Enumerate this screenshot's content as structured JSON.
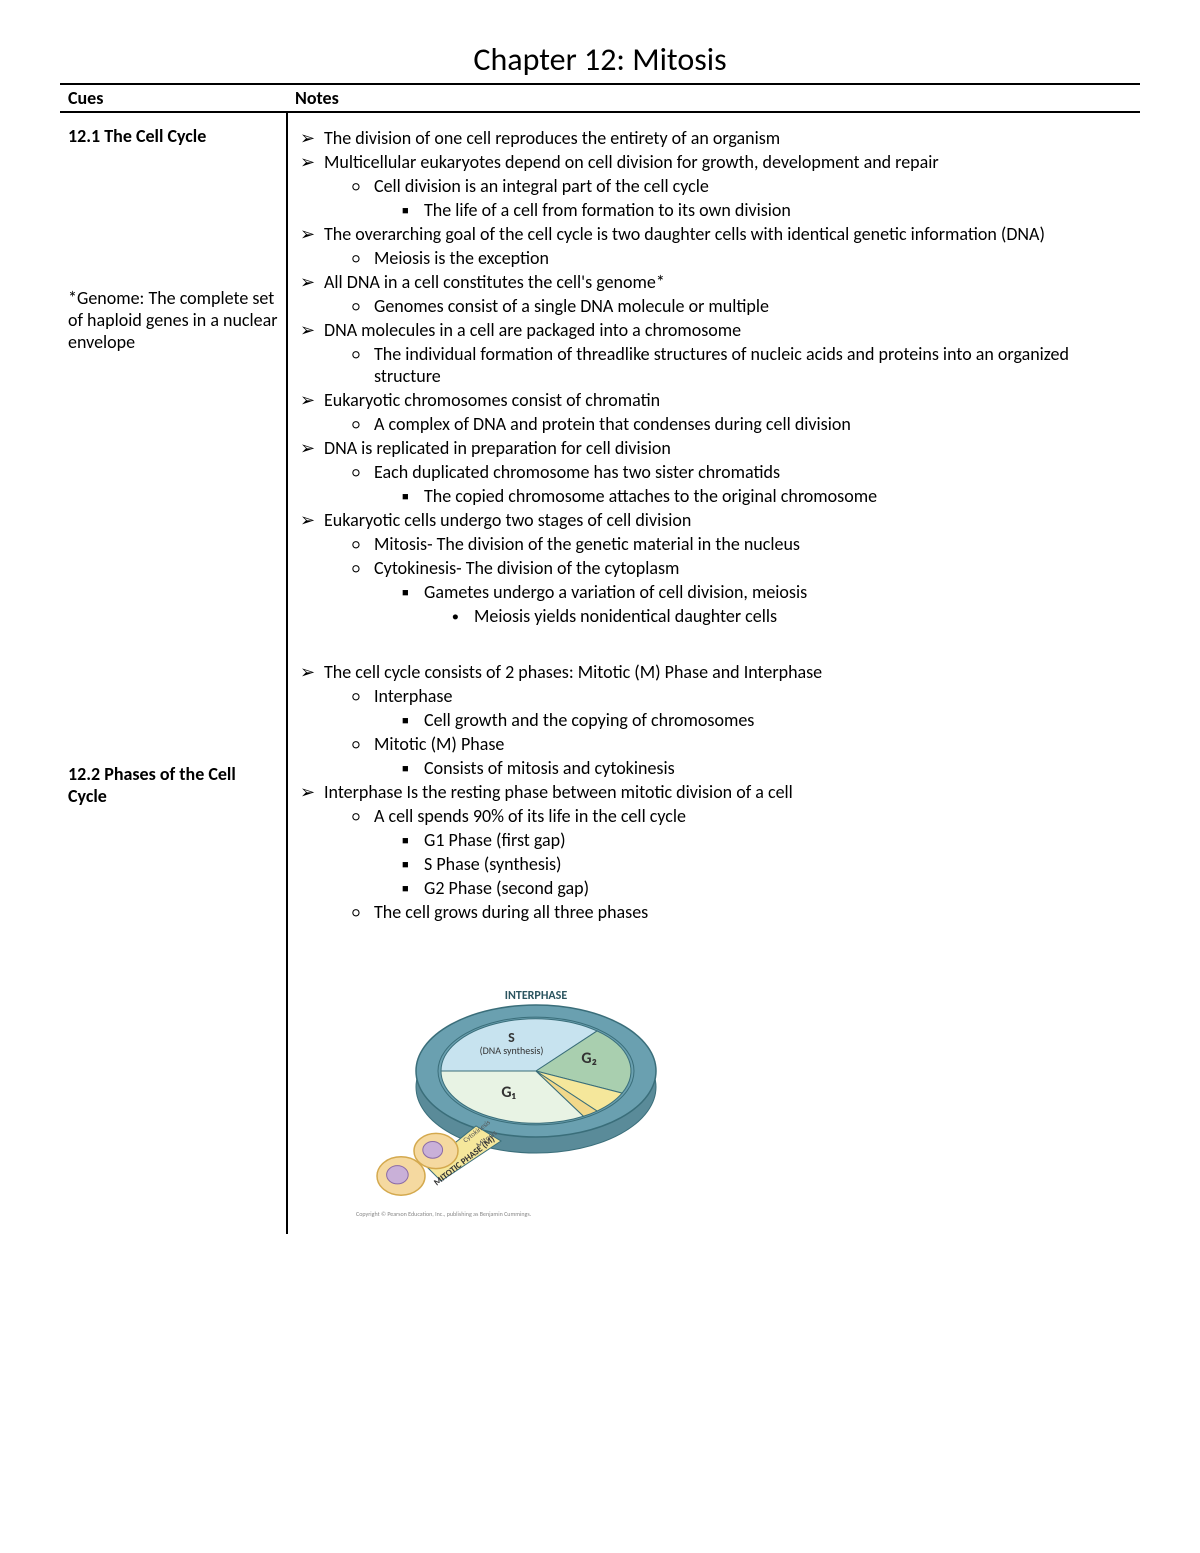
{
  "title": "Chapter 12: Mitosis",
  "headers": {
    "cues": "Cues",
    "notes": "Notes"
  },
  "cues": {
    "s1_title": "12.1 The Cell Cycle",
    "s1_def": "*Genome: The complete set of haploid genes in a nuclear envelope",
    "s2_title": "12.2 Phases of the Cell Cycle"
  },
  "notes": {
    "s1": {
      "b1": "The division of one cell reproduces the entirety of an organism",
      "b2": "Multicellular eukaryotes depend on cell division for growth, development and repair",
      "b2a": "Cell division is an integral part of the cell cycle",
      "b2a1": "The life of a cell from formation to its own division",
      "b3": "The overarching goal of the cell cycle is two daughter cells with identical genetic information (DNA)",
      "b3a": "Meiosis is the exception",
      "b4": "All DNA in a cell constitutes the cell's genome*",
      "b4a": "Genomes consist of a single DNA molecule or multiple",
      "b5": "DNA molecules in a cell are packaged into a chromosome",
      "b5a": "The individual formation of threadlike structures of nucleic acids and proteins into an organized structure",
      "b6": "Eukaryotic chromosomes consist of chromatin",
      "b6a": "A complex of DNA and protein that condenses during cell division",
      "b7": "DNA is replicated in preparation for cell division",
      "b7a": "Each duplicated chromosome has two sister chromatids",
      "b7a1": "The copied chromosome attaches to the original chromosome",
      "b8": "Eukaryotic cells undergo two stages of cell division",
      "b8a": "Mitosis- The division of the genetic material in the nucleus",
      "b8b": "Cytokinesis- The division of the cytoplasm",
      "b8b1": "Gametes undergo a variation of cell division, meiosis",
      "b8b1a": "Meiosis yields nonidentical daughter cells"
    },
    "s2": {
      "b1": "The cell cycle consists of 2 phases: Mitotic (M) Phase and Interphase",
      "b1a": "Interphase",
      "b1a1": "Cell growth and the copying of chromosomes",
      "b1b": "Mitotic (M) Phase",
      "b1b1": "Consists of mitosis and cytokinesis",
      "b2": "Interphase Is the resting phase between mitotic division of a cell",
      "b2a": "A cell spends 90% of its life in the cell cycle",
      "b2a1": "G1 Phase (first gap)",
      "b2a2": "S Phase (synthesis)",
      "b2a3": "G2 Phase (second gap)",
      "b2b": "The cell grows during all three phases"
    }
  },
  "diagram": {
    "type": "pie",
    "title_top": "INTERPHASE",
    "title_bottom": "MITOTIC PHASE (M)",
    "slices": {
      "g1": {
        "label": "G₁",
        "color": "#e8f3e4",
        "start": 150,
        "end": 270
      },
      "s": {
        "label": "S",
        "sublabel": "(DNA synthesis)",
        "color": "#c7e3ef",
        "start": 270,
        "end": 40
      },
      "g2": {
        "label": "G₂",
        "color": "#a9cfaf",
        "start": 40,
        "end": 115
      },
      "m": {
        "label": "Mitosis",
        "color": "#f5e79b",
        "start": 115,
        "end": 140
      },
      "cyt": {
        "label": "Cytokinesis",
        "color": "#f2d88a",
        "start": 140,
        "end": 150
      }
    },
    "ring_color": "#6aa0b0",
    "outline": "#3a6e7a",
    "cell_fill": "#f5d9a0",
    "cell_outline": "#d4a94e",
    "nucleus_fill": "#c9b0d8",
    "nucleus_outline": "#8a6aa5",
    "copyright": "Copyright © Pearson Education, Inc., publishing as Benjamin Cummings."
  }
}
